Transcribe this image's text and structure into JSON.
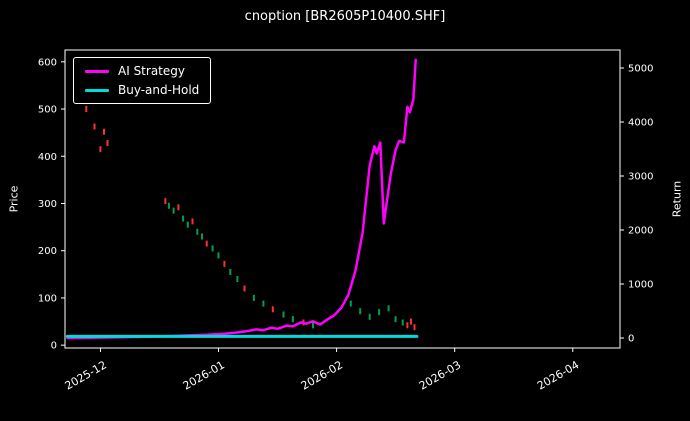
{
  "chart_data": {
    "type": "line",
    "title": "cnoption [BR2605P10400.SHF]",
    "ylabel_left": "Price",
    "ylabel_right": "Return",
    "x_unit": "months since 2025-12",
    "x_ticks": [
      "2025-12",
      "2026-01",
      "2026-02",
      "2026-03",
      "2026-04"
    ],
    "xlim": [
      -0.3,
      4.4
    ],
    "left_ylim": [
      -6,
      625
    ],
    "left_yticks": [
      0,
      100,
      200,
      300,
      400,
      500,
      600
    ],
    "right_ylim": [
      -185,
      5333
    ],
    "right_yticks": [
      0,
      1000,
      2000,
      3000,
      4000,
      5000
    ],
    "grid": false,
    "legend_position": "upper-left",
    "legend": [
      {
        "label": "AI Strategy",
        "color": "#ff00ff"
      },
      {
        "label": "Buy-and-Hold",
        "color": "#00dcdc"
      }
    ],
    "colors": {
      "background": "#000000",
      "foreground": "#ffffff",
      "up_mark": "#00a050",
      "down_mark": "#ff3030"
    },
    "series": [
      {
        "name": "AI Strategy",
        "axis": "right",
        "points": [
          [
            -0.28,
            0
          ],
          [
            -0.1,
            5
          ],
          [
            0.1,
            12
          ],
          [
            0.3,
            20
          ],
          [
            0.5,
            30
          ],
          [
            0.7,
            45
          ],
          [
            0.9,
            60
          ],
          [
            1.05,
            80
          ],
          [
            1.15,
            100
          ],
          [
            1.25,
            130
          ],
          [
            1.32,
            160
          ],
          [
            1.38,
            145
          ],
          [
            1.45,
            190
          ],
          [
            1.5,
            170
          ],
          [
            1.58,
            230
          ],
          [
            1.63,
            215
          ],
          [
            1.7,
            290
          ],
          [
            1.74,
            265
          ],
          [
            1.8,
            310
          ],
          [
            1.86,
            250
          ],
          [
            1.92,
            340
          ],
          [
            1.98,
            420
          ],
          [
            2.04,
            560
          ],
          [
            2.1,
            800
          ],
          [
            2.16,
            1250
          ],
          [
            2.22,
            1950
          ],
          [
            2.28,
            3200
          ],
          [
            2.32,
            3550
          ],
          [
            2.34,
            3420
          ],
          [
            2.37,
            3620
          ],
          [
            2.4,
            2120
          ],
          [
            2.43,
            2600
          ],
          [
            2.46,
            3050
          ],
          [
            2.5,
            3480
          ],
          [
            2.53,
            3650
          ],
          [
            2.57,
            3620
          ],
          [
            2.6,
            4280
          ],
          [
            2.62,
            4180
          ],
          [
            2.65,
            4420
          ],
          [
            2.67,
            5150
          ]
        ]
      },
      {
        "name": "Buy-and-Hold",
        "axis": "right",
        "points": [
          [
            -0.28,
            30
          ],
          [
            2.68,
            30
          ]
        ]
      }
    ],
    "price_marks": [
      [
        -0.12,
        500,
        "r"
      ],
      [
        -0.05,
        463,
        "r"
      ],
      [
        0.0,
        415,
        "r"
      ],
      [
        0.03,
        452,
        "r"
      ],
      [
        0.06,
        428,
        "r"
      ],
      [
        0.55,
        305,
        "r"
      ],
      [
        0.58,
        295,
        "g"
      ],
      [
        0.62,
        285,
        "g"
      ],
      [
        0.66,
        292,
        "r"
      ],
      [
        0.7,
        268,
        "g"
      ],
      [
        0.74,
        255,
        "g"
      ],
      [
        0.78,
        262,
        "r"
      ],
      [
        0.82,
        240,
        "g"
      ],
      [
        0.86,
        230,
        "g"
      ],
      [
        0.9,
        215,
        "r"
      ],
      [
        0.95,
        205,
        "g"
      ],
      [
        1.0,
        190,
        "g"
      ],
      [
        1.05,
        172,
        "r"
      ],
      [
        1.1,
        155,
        "g"
      ],
      [
        1.16,
        140,
        "g"
      ],
      [
        1.22,
        120,
        "r"
      ],
      [
        1.3,
        100,
        "g"
      ],
      [
        1.38,
        88,
        "g"
      ],
      [
        1.46,
        76,
        "r"
      ],
      [
        1.55,
        65,
        "g"
      ],
      [
        1.63,
        55,
        "g"
      ],
      [
        1.72,
        48,
        "r"
      ],
      [
        1.8,
        42,
        "g"
      ],
      [
        2.12,
        88,
        "g"
      ],
      [
        2.2,
        72,
        "g"
      ],
      [
        2.28,
        60,
        "g"
      ],
      [
        2.36,
        70,
        "g"
      ],
      [
        2.44,
        78,
        "g"
      ],
      [
        2.5,
        55,
        "g"
      ],
      [
        2.56,
        48,
        "g"
      ],
      [
        2.6,
        42,
        "r"
      ],
      [
        2.63,
        50,
        "r"
      ],
      [
        2.66,
        38,
        "r"
      ]
    ]
  }
}
